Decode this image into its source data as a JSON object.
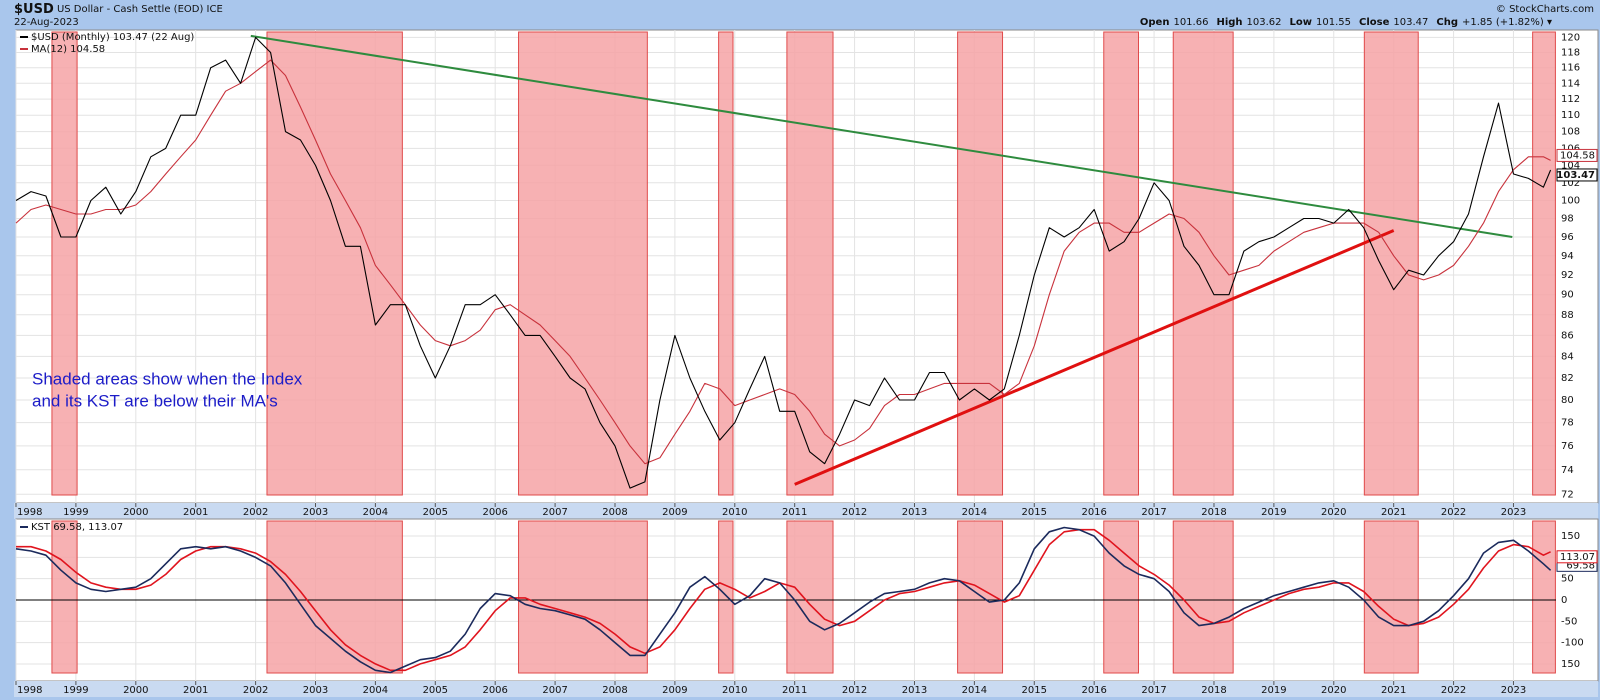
{
  "header": {
    "symbol": "$USD",
    "name": "US Dollar - Cash Settle (EOD)",
    "exchange": "ICE",
    "date": "22-Aug-2023",
    "quote": [
      {
        "label": "Open",
        "value": "101.66"
      },
      {
        "label": "High",
        "value": "103.62"
      },
      {
        "label": "Low",
        "value": "101.55"
      },
      {
        "label": "Close",
        "value": "103.47"
      },
      {
        "label": "Chg",
        "value": "+1.85 (+1.82%) ▾"
      }
    ],
    "copyright": "© StockCharts.com"
  },
  "chart_data": [
    {
      "type": "line",
      "log": true,
      "grid": true,
      "x": [
        1998,
        1998.25,
        1998.5,
        1998.75,
        1999,
        1999.25,
        1999.5,
        1999.75,
        2000,
        2000.25,
        2000.5,
        2000.75,
        2001,
        2001.25,
        2001.5,
        2001.75,
        2002,
        2002.25,
        2002.5,
        2002.75,
        2003,
        2003.25,
        2003.5,
        2003.75,
        2004,
        2004.25,
        2004.5,
        2004.75,
        2005,
        2005.25,
        2005.5,
        2005.75,
        2006,
        2006.25,
        2006.5,
        2006.75,
        2007,
        2007.25,
        2007.5,
        2007.75,
        2008,
        2008.25,
        2008.5,
        2008.75,
        2009,
        2009.25,
        2009.5,
        2009.75,
        2010,
        2010.25,
        2010.5,
        2010.75,
        2011,
        2011.25,
        2011.5,
        2011.75,
        2012,
        2012.25,
        2012.5,
        2012.75,
        2013,
        2013.25,
        2013.5,
        2013.75,
        2014,
        2014.25,
        2014.5,
        2014.75,
        2015,
        2015.25,
        2015.5,
        2015.75,
        2016,
        2016.25,
        2016.5,
        2016.75,
        2017,
        2017.25,
        2017.5,
        2017.75,
        2018,
        2018.25,
        2018.5,
        2018.75,
        2019,
        2019.25,
        2019.5,
        2019.75,
        2020,
        2020.25,
        2020.5,
        2020.75,
        2021,
        2021.25,
        2021.5,
        2021.75,
        2022,
        2022.25,
        2022.5,
        2022.75,
        2023,
        2023.25,
        2023.5,
        2023.62
      ],
      "series": [
        {
          "name": "$USD (Monthly) 103.47 (22 Aug)",
          "color": "#000000",
          "last_label": "103.47",
          "values": [
            100,
            101,
            100.5,
            96,
            96,
            100,
            101.5,
            98.5,
            101,
            105,
            106,
            110,
            110,
            116,
            117,
            114,
            120,
            118,
            108,
            107,
            104,
            100,
            95,
            95,
            87,
            89,
            89,
            85,
            82,
            85,
            89,
            89,
            90,
            88,
            86,
            86,
            84,
            82,
            81,
            78,
            76,
            72.5,
            73,
            80,
            86,
            82,
            79,
            76.5,
            78,
            81,
            84,
            79,
            79,
            75.5,
            74.5,
            77,
            80,
            79.5,
            82,
            80,
            80,
            82.5,
            82.5,
            80,
            81,
            80,
            81,
            86,
            92,
            97,
            96,
            97,
            99,
            94.5,
            95.5,
            98,
            102,
            100,
            95,
            93,
            90,
            90,
            94.5,
            95.5,
            96,
            97,
            98,
            98,
            97.5,
            99,
            97,
            93.5,
            90.5,
            92.5,
            92,
            94,
            95.5,
            98.5,
            105,
            111.5,
            103,
            102.5,
            101.5,
            103.47
          ]
        },
        {
          "name": "MA(12) 104.58",
          "color": "#c8323c",
          "last_label": "104.58",
          "values": [
            97.5,
            99,
            99.5,
            99,
            98.5,
            98.5,
            99,
            99,
            99.5,
            101,
            103,
            105,
            107,
            110,
            113,
            114,
            115.5,
            117,
            115,
            111,
            107,
            103,
            100,
            97,
            93,
            91,
            89,
            87,
            85.5,
            85,
            85.5,
            86.5,
            88.5,
            89,
            88,
            87,
            85.5,
            84,
            82,
            80,
            78,
            76,
            74.5,
            75,
            77,
            79,
            81.5,
            81,
            79.5,
            80,
            80.5,
            81,
            80.5,
            79,
            77,
            76,
            76.5,
            77.5,
            79.5,
            80.5,
            80.5,
            81,
            81.5,
            81.5,
            81.5,
            81.5,
            80.5,
            81.5,
            85,
            90,
            94.5,
            96.5,
            97.5,
            97.5,
            96.5,
            96.5,
            97.5,
            98.5,
            98,
            96.5,
            94,
            92,
            92.5,
            93,
            94.5,
            95.5,
            96.5,
            97,
            97.5,
            97.5,
            97.5,
            96.5,
            94,
            92,
            91.5,
            92,
            93,
            95,
            97.5,
            101,
            103.5,
            105,
            105,
            104.58
          ]
        }
      ],
      "trendlines": [
        {
          "color": "#2e8b3e",
          "x": [
            2001.92,
            2022.98
          ],
          "values": [
            120.2,
            96
          ]
        },
        {
          "color": "#e01010",
          "x": [
            2011.0,
            2021.0
          ],
          "values": [
            72.8,
            96.7
          ]
        }
      ],
      "shaded": [
        [
          1998.6,
          1999.02
        ],
        [
          2002.19,
          2004.45
        ],
        [
          2006.39,
          2008.54
        ],
        [
          2009.73,
          2009.97
        ],
        [
          2010.87,
          2011.64
        ],
        [
          2013.72,
          2014.47
        ],
        [
          2016.16,
          2016.74
        ],
        [
          2017.32,
          2018.32
        ],
        [
          2020.51,
          2021.41
        ],
        [
          2023.32,
          2023.7
        ]
      ],
      "shade_color": "#f6a3a6",
      "annotation": [
        "Shaded areas show when the Index",
        "and its KST are below their MA's"
      ],
      "xlim": [
        1998,
        2023.71
      ],
      "xticks": [
        1998,
        1999,
        2000,
        2001,
        2002,
        2003,
        2004,
        2005,
        2006,
        2007,
        2008,
        2009,
        2010,
        2011,
        2012,
        2013,
        2014,
        2015,
        2016,
        2017,
        2018,
        2019,
        2020,
        2021,
        2022,
        2023
      ],
      "ylim": [
        71.3,
        121
      ],
      "yticks": [
        72,
        74,
        76,
        78,
        80,
        82,
        84,
        86,
        88,
        90,
        92,
        94,
        96,
        98,
        100,
        102,
        104,
        106,
        108,
        110,
        112,
        114,
        116,
        118,
        120
      ]
    },
    {
      "type": "line",
      "log": false,
      "grid": true,
      "legend_text": "KST 69.58, 113.07",
      "hline": 0,
      "x": [
        1998,
        1998.25,
        1998.5,
        1998.75,
        1999,
        1999.25,
        1999.5,
        1999.75,
        2000,
        2000.25,
        2000.5,
        2000.75,
        2001,
        2001.25,
        2001.5,
        2001.75,
        2002,
        2002.25,
        2002.5,
        2002.75,
        2003,
        2003.25,
        2003.5,
        2003.75,
        2004,
        2004.25,
        2004.5,
        2004.75,
        2005,
        2005.25,
        2005.5,
        2005.75,
        2006,
        2006.25,
        2006.5,
        2006.75,
        2007,
        2007.25,
        2007.5,
        2007.75,
        2008,
        2008.25,
        2008.5,
        2008.75,
        2009,
        2009.25,
        2009.5,
        2009.75,
        2010,
        2010.25,
        2010.5,
        2010.75,
        2011,
        2011.25,
        2011.5,
        2011.75,
        2012,
        2012.25,
        2012.5,
        2012.75,
        2013,
        2013.25,
        2013.5,
        2013.75,
        2014,
        2014.25,
        2014.5,
        2014.75,
        2015,
        2015.25,
        2015.5,
        2015.75,
        2016,
        2016.25,
        2016.5,
        2016.75,
        2017,
        2017.25,
        2017.5,
        2017.75,
        2018,
        2018.25,
        2018.5,
        2018.75,
        2019,
        2019.25,
        2019.5,
        2019.75,
        2020,
        2020.25,
        2020.5,
        2020.75,
        2021,
        2021.25,
        2021.5,
        2021.75,
        2022,
        2022.25,
        2022.5,
        2022.75,
        2023,
        2023.25,
        2023.5,
        2023.62
      ],
      "series": [
        {
          "color": "#1b2a5c",
          "last_label": "69.58",
          "values": [
            120,
            115,
            105,
            70,
            40,
            25,
            20,
            25,
            30,
            50,
            85,
            120,
            125,
            120,
            125,
            115,
            100,
            80,
            40,
            -10,
            -60,
            -90,
            -120,
            -145,
            -165,
            -170,
            -155,
            -140,
            -135,
            -120,
            -80,
            -20,
            15,
            10,
            -10,
            -20,
            -25,
            -35,
            -45,
            -70,
            -100,
            -130,
            -130,
            -80,
            -30,
            30,
            55,
            25,
            -10,
            10,
            50,
            40,
            0,
            -50,
            -70,
            -55,
            -30,
            -5,
            15,
            20,
            25,
            40,
            50,
            45,
            20,
            -5,
            0,
            40,
            120,
            160,
            170,
            165,
            150,
            110,
            80,
            60,
            50,
            20,
            -30,
            -60,
            -55,
            -40,
            -20,
            -5,
            10,
            20,
            30,
            40,
            45,
            30,
            0,
            -40,
            -60,
            -60,
            -50,
            -25,
            10,
            50,
            110,
            135,
            140,
            115,
            85,
            69.58
          ]
        },
        {
          "color": "#e0141e",
          "last_label": "113.07",
          "values": [
            125,
            125,
            115,
            95,
            65,
            40,
            30,
            25,
            25,
            35,
            60,
            95,
            115,
            125,
            125,
            120,
            110,
            90,
            60,
            20,
            -25,
            -70,
            -105,
            -130,
            -150,
            -165,
            -165,
            -150,
            -140,
            -130,
            -110,
            -70,
            -25,
            5,
            5,
            -10,
            -20,
            -30,
            -40,
            -55,
            -80,
            -110,
            -125,
            -110,
            -70,
            -20,
            25,
            40,
            25,
            5,
            20,
            40,
            30,
            -10,
            -45,
            -60,
            -50,
            -25,
            0,
            15,
            20,
            30,
            40,
            45,
            35,
            15,
            -5,
            10,
            70,
            130,
            160,
            165,
            165,
            140,
            110,
            80,
            60,
            35,
            0,
            -40,
            -55,
            -50,
            -30,
            -15,
            0,
            15,
            25,
            30,
            40,
            40,
            20,
            -15,
            -45,
            -60,
            -55,
            -40,
            -10,
            25,
            75,
            115,
            130,
            125,
            105,
            113.07
          ]
        }
      ],
      "shaded": [
        [
          1998.6,
          1999.02
        ],
        [
          2002.19,
          2004.45
        ],
        [
          2006.39,
          2008.54
        ],
        [
          2009.73,
          2009.97
        ],
        [
          2010.87,
          2011.64
        ],
        [
          2013.72,
          2014.47
        ],
        [
          2016.16,
          2016.74
        ],
        [
          2017.32,
          2018.32
        ],
        [
          2020.51,
          2021.41
        ],
        [
          2023.32,
          2023.7
        ]
      ],
      "shade_color": "#f6a3a6",
      "xlim": [
        1998,
        2023.71
      ],
      "xticks": [
        1998,
        1999,
        2000,
        2001,
        2002,
        2003,
        2004,
        2005,
        2006,
        2007,
        2008,
        2009,
        2010,
        2011,
        2012,
        2013,
        2014,
        2015,
        2016,
        2017,
        2018,
        2019,
        2020,
        2021,
        2022,
        2023
      ],
      "ylim": [
        -190,
        190
      ],
      "yticks": [
        150,
        100,
        50,
        0,
        -50,
        -100,
        {
          "value": -150,
          "label": "150"
        }
      ]
    }
  ]
}
